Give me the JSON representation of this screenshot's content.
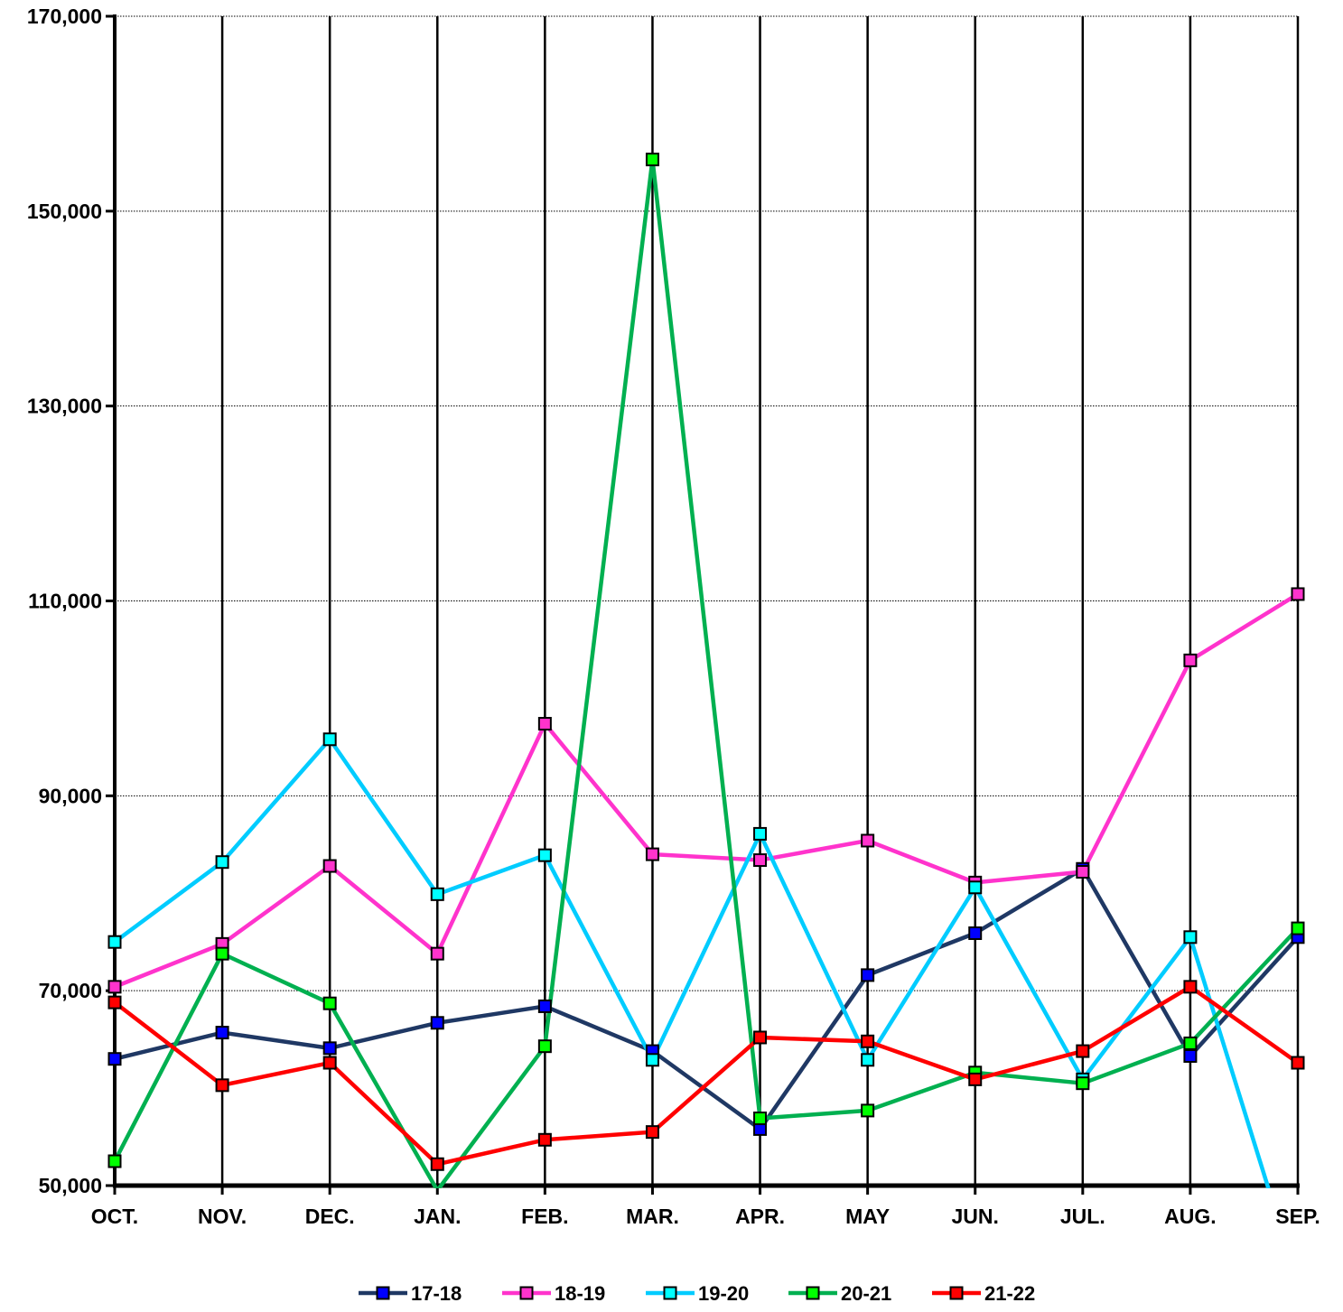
{
  "chart_data": {
    "type": "line",
    "title": "",
    "xlabel": "",
    "ylabel": "",
    "categories": [
      "OCT.",
      "NOV.",
      "DEC.",
      "JAN.",
      "FEB.",
      "MAR.",
      "APR.",
      "MAY",
      "JUN.",
      "JUL.",
      "AUG.",
      "SEP."
    ],
    "ylim": [
      50000,
      170000
    ],
    "yticks": [
      50000,
      70000,
      90000,
      110000,
      130000,
      150000,
      170000
    ],
    "ytick_labels": [
      "50,000",
      "70,000",
      "90,000",
      "110,000",
      "130,000",
      "150,000",
      "170,000"
    ],
    "grid": "horizontal dotted at each y tick, solid vertical at each category",
    "legend_position": "bottom",
    "series": [
      {
        "name": "17-18",
        "line_color": "#1F3864",
        "marker_color": "#0000FF",
        "values": [
          63000,
          65700,
          64100,
          66700,
          68400,
          63800,
          55800,
          71600,
          75900,
          82500,
          63300,
          75500
        ]
      },
      {
        "name": "18-19",
        "line_color": "#FF33CC",
        "marker_color": "#FF33CC",
        "values": [
          70400,
          74800,
          82800,
          73800,
          97400,
          84000,
          83400,
          85400,
          81100,
          82200,
          103900,
          110700
        ]
      },
      {
        "name": "19-20",
        "line_color": "#00CCFF",
        "marker_color": "#00FFFF",
        "values": [
          75000,
          83200,
          95800,
          79900,
          83900,
          62900,
          86100,
          62900,
          80600,
          60900,
          75500,
          40000
        ]
      },
      {
        "name": "20-21",
        "line_color": "#00B050",
        "marker_color": "#00FF00",
        "values": [
          52500,
          73800,
          68700,
          49500,
          64300,
          155300,
          56900,
          57700,
          61600,
          60500,
          64600,
          76400
        ]
      },
      {
        "name": "21-22",
        "line_color": "#FF0000",
        "marker_color": "#FF0000",
        "values": [
          68800,
          60300,
          62600,
          52200,
          54700,
          55500,
          65200,
          64800,
          60900,
          63800,
          70400,
          62600
        ]
      }
    ]
  }
}
